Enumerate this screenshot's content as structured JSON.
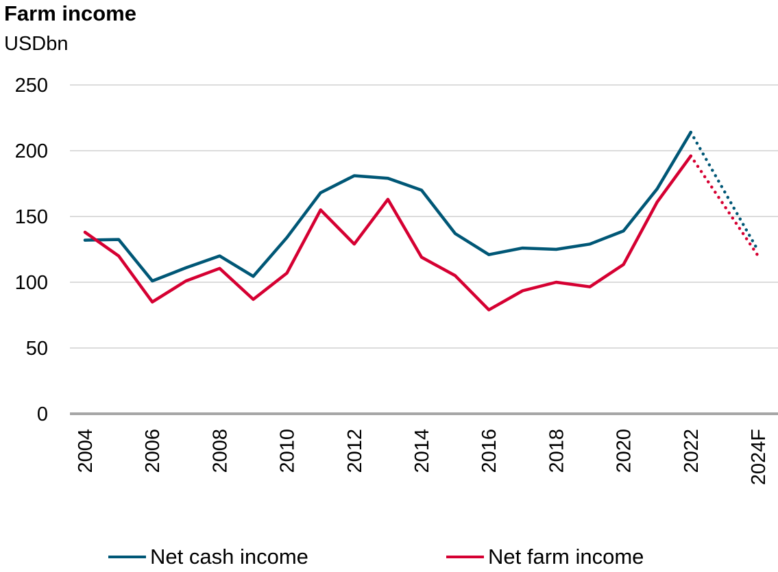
{
  "title": "Farm income",
  "subtitle": "USDbn",
  "colors": {
    "net_cash": "#005776",
    "net_farm": "#d50032",
    "grid": "#d0d0d0",
    "axis": "#a6a6a6"
  },
  "chart_data": {
    "type": "line",
    "title": "Farm income",
    "ylabel": "USDbn",
    "xlabel": "",
    "ylim": [
      0,
      250
    ],
    "yticks": [
      "0",
      "50",
      "100",
      "150",
      "200",
      "250"
    ],
    "x": [
      "2004",
      "2005",
      "2006",
      "2007",
      "2008",
      "2009",
      "2010",
      "2011",
      "2012",
      "2013",
      "2014",
      "2015",
      "2016",
      "2017",
      "2018",
      "2019",
      "2020",
      "2021",
      "2022",
      "2023F",
      "2024F"
    ],
    "x_tick_labels": [
      "2004",
      "2006",
      "2008",
      "2010",
      "2012",
      "2014",
      "2016",
      "2018",
      "2020",
      "2022",
      "2024F"
    ],
    "grid": true,
    "legend": "bottom",
    "forecast_note": "dotted segment from 2022 to 2024F",
    "series": [
      {
        "name": "Net cash income",
        "color": "#005776",
        "values": [
          132,
          132.5,
          101,
          111,
          120,
          104.5,
          134,
          168,
          181,
          179,
          170,
          137,
          121,
          126,
          125,
          129,
          139,
          171,
          214,
          null,
          124
        ]
      },
      {
        "name": "Net farm income",
        "color": "#d50032",
        "values": [
          138,
          120,
          85,
          101,
          110.5,
          87,
          107,
          155,
          129,
          163,
          119,
          105,
          79,
          93.5,
          100,
          96.5,
          113.5,
          161,
          196,
          null,
          120
        ]
      }
    ]
  },
  "legend": {
    "items": [
      "Net cash income",
      "Net farm income"
    ]
  }
}
